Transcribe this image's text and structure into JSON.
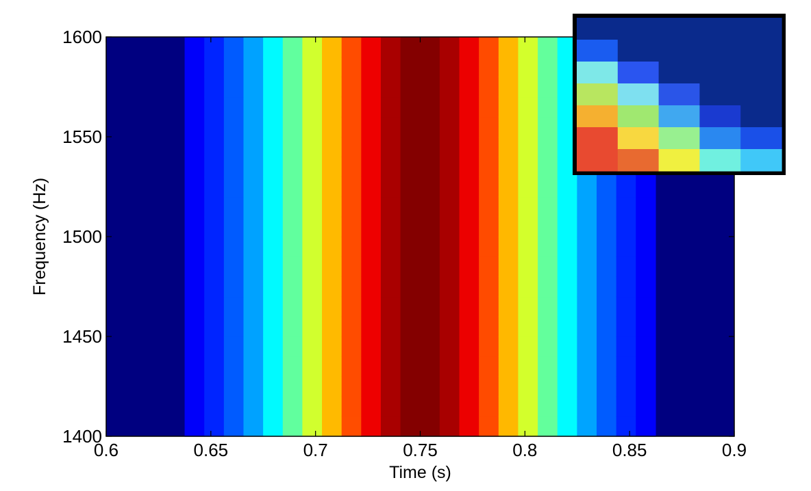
{
  "chart_data": {
    "type": "heatmap",
    "title": "",
    "xlabel": "Time (s)",
    "ylabel": "Frequency (Hz)",
    "xlim": [
      0.6,
      0.9
    ],
    "ylim": [
      1400,
      1600
    ],
    "x_ticks": [
      0.6,
      0.65,
      0.7,
      0.75,
      0.8,
      0.85,
      0.9
    ],
    "x_tick_labels": [
      "0.6",
      "0.65",
      "0.7",
      "0.75",
      "0.8",
      "0.85",
      "0.9"
    ],
    "y_ticks": [
      1400,
      1450,
      1500,
      1550,
      1600
    ],
    "y_tick_labels": [
      "1400",
      "1450",
      "1500",
      "1550",
      "1600"
    ],
    "colormap": "jet",
    "background_color": "#000080",
    "grid": false,
    "legend": "none",
    "cell_width_s": 0.00937,
    "cell_height_hz": 10,
    "intensity_model": {
      "description": "2D gaussian ridge, downward chirp",
      "center_time": 0.75,
      "center_freq": 1500,
      "slope_hz_per_s": -575,
      "sigma_along_time_s": 0.048,
      "sigma_across_hz": 24
    },
    "inset": {
      "description": "zoomed view of lower-left edge of energy ridge",
      "border_color": "#000000",
      "columns": [
        [
          "#0a2a8c",
          "#1a5cf0",
          "#7ee8e8",
          "#b8e660",
          "#f5b030",
          "#e84a30",
          "#e84a30"
        ],
        [
          "#0a2a8c",
          "#0a2a8c",
          "#2a55f0",
          "#7ee0f0",
          "#a0e870",
          "#f8d840",
          "#e86a30"
        ],
        [
          "#0a2a8c",
          "#0a2a8c",
          "#0a2a8c",
          "#2a55e8",
          "#40a8f0",
          "#98f090",
          "#f0f040"
        ],
        [
          "#0a2a8c",
          "#0a2a8c",
          "#0a2a8c",
          "#0a2a8c",
          "#1a3ad0",
          "#2a88f0",
          "#70f0e0"
        ],
        [
          "#0a2a8c",
          "#0a2a8c",
          "#0a2a8c",
          "#0a2a8c",
          "#0a2a8c",
          "#1a50e8",
          "#40c8f8"
        ]
      ]
    }
  }
}
